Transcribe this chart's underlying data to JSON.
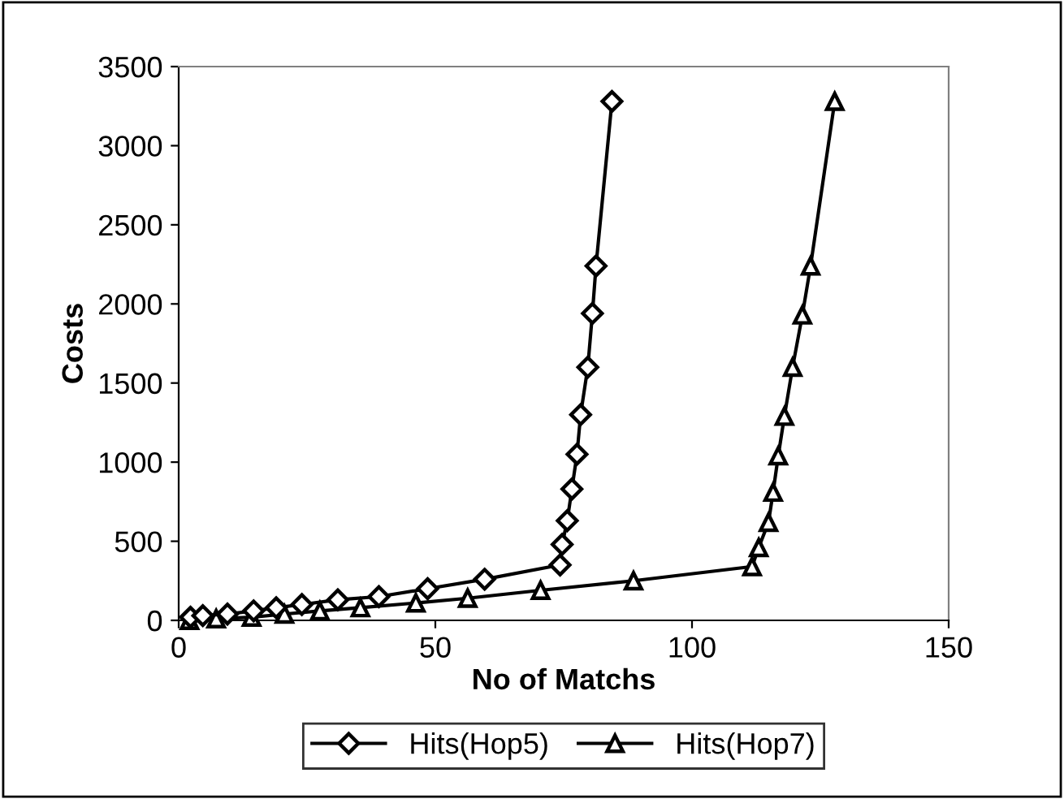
{
  "chart_data": {
    "type": "line",
    "xlabel": "No of Matchs",
    "ylabel": "Costs",
    "xlim": [
      0,
      150
    ],
    "xticks": [
      0,
      50,
      100,
      150
    ],
    "ylim": [
      0,
      3500
    ],
    "yticks": [
      0,
      500,
      1000,
      1500,
      2000,
      2500,
      3000,
      3500
    ],
    "grid": false,
    "legend": "bottom",
    "series": [
      {
        "name": "Hits(Hop5)",
        "color": "#000000",
        "marker": "diamond",
        "x": [
          2.3,
          4.7,
          9.5,
          14.6,
          19,
          24,
          31,
          39,
          48.5,
          59.6,
          74.3,
          74.7,
          75.7,
          76.6,
          77.6,
          78.3,
          79.7,
          80.6,
          81.3,
          84.4
        ],
        "values": [
          20,
          30,
          40,
          60,
          80,
          100,
          130,
          150,
          200,
          260,
          350,
          480,
          630,
          830,
          1050,
          1300,
          1600,
          1940,
          2240,
          3280
        ]
      },
      {
        "name": "Hits(Hop7)",
        "color": "#000000",
        "marker": "triangle",
        "x": [
          2.1,
          7.3,
          14.2,
          20.6,
          27.5,
          35.4,
          46.2,
          56.3,
          70.5,
          88.6,
          111.7,
          113,
          114.9,
          115.8,
          116.8,
          118,
          119.6,
          121.5,
          123.1,
          127.8
        ],
        "values": [
          0,
          10,
          20,
          40,
          60,
          80,
          110,
          140,
          190,
          250,
          340,
          460,
          620,
          810,
          1040,
          1290,
          1600,
          1930,
          2240,
          3280
        ]
      }
    ]
  }
}
